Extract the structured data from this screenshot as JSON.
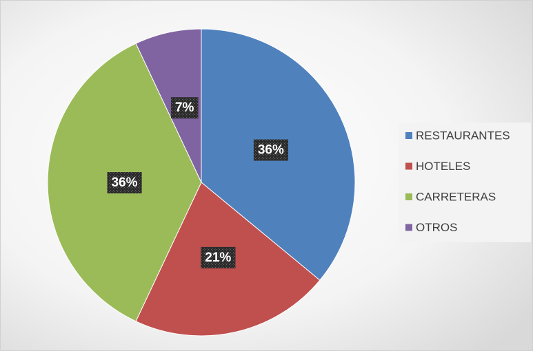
{
  "chart_data": {
    "type": "pie",
    "categories": [
      "RESTAURANTES",
      "HOTELES",
      "CARRETERAS",
      "OTROS"
    ],
    "values": [
      36,
      21,
      36,
      7
    ],
    "value_labels": [
      "36%",
      "21%",
      "36%",
      "7%"
    ],
    "colors": [
      "#4f81bd",
      "#c0504d",
      "#9bbb59",
      "#8064a2"
    ],
    "legend": "right"
  }
}
